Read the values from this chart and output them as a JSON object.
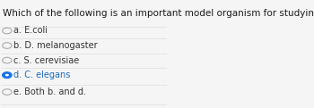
{
  "question": "Which of the following is an important model organism for studying development?",
  "options": [
    "a. E.coli",
    "b. D. melanogaster",
    "c. S. cerevisiae",
    "d. C. elegans",
    "e. Both b. and d."
  ],
  "selected_index": 3,
  "background_color": "#f5f5f5",
  "question_fontsize": 7.5,
  "option_fontsize": 7.0,
  "question_color": "#1a1a1a",
  "option_color": "#333333",
  "selected_color": "#1a73e8",
  "unselected_circle_color": "#aaaaaa",
  "divider_color": "#dddddd",
  "selected_text_color": "#1a6bbf"
}
